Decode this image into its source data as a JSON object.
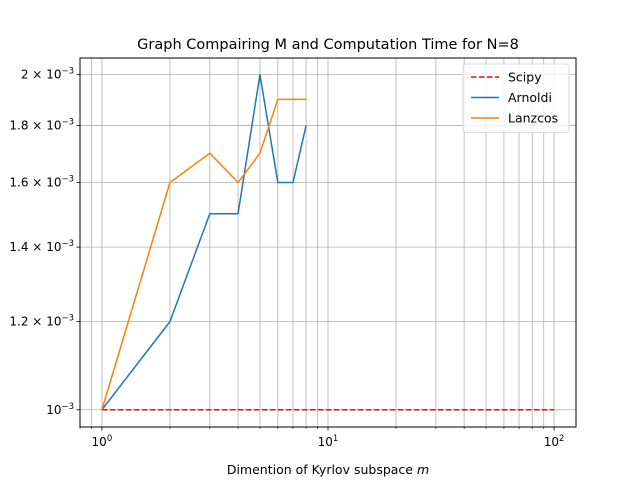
{
  "chart_data": {
    "type": "line",
    "title": "Graph Compairing M and Computation Time for N=8",
    "xlabel": "Dimention of Kyrlov subspace",
    "xlabel_var": "m",
    "ylabel": "",
    "xscale": "log",
    "yscale": "log",
    "xlim": [
      0.8,
      125
    ],
    "ylim": [
      0.000965,
      0.00207
    ],
    "grid": true,
    "legend_position": "upper right",
    "x_major_ticks": [
      1,
      10,
      100
    ],
    "x_major_tick_labels": [
      {
        "base": "10",
        "exp": "0"
      },
      {
        "base": "10",
        "exp": "1"
      },
      {
        "base": "10",
        "exp": "2"
      }
    ],
    "y_ticks": [
      0.001,
      0.0012,
      0.0014,
      0.0016,
      0.0018,
      0.002
    ],
    "y_tick_labels": [
      {
        "mant": "",
        "exp": "−3"
      },
      {
        "mant": "1.2",
        "exp": "−3"
      },
      {
        "mant": "1.4",
        "exp": "−3"
      },
      {
        "mant": "1.6",
        "exp": "−3"
      },
      {
        "mant": "1.8",
        "exp": "−3"
      },
      {
        "mant": "2",
        "exp": "−3"
      }
    ],
    "series": [
      {
        "name": "Scipy",
        "color": "#ff0000",
        "dashed": true,
        "x": [
          1,
          100
        ],
        "y": [
          0.001,
          0.001
        ]
      },
      {
        "name": "Arnoldi",
        "color": "#1f77b4",
        "dashed": false,
        "x": [
          1,
          2,
          3,
          4,
          5,
          6,
          7,
          8
        ],
        "y": [
          0.001,
          0.0012,
          0.0015,
          0.0015,
          0.002,
          0.0016,
          0.0016,
          0.0018
        ]
      },
      {
        "name": "Lanzcos",
        "color": "#ff7f0e",
        "dashed": false,
        "x": [
          1,
          2,
          3,
          4,
          5,
          6,
          7,
          8
        ],
        "y": [
          0.001,
          0.0016,
          0.0017,
          0.0016,
          0.0017,
          0.0019,
          0.0019,
          0.0019
        ]
      }
    ]
  }
}
